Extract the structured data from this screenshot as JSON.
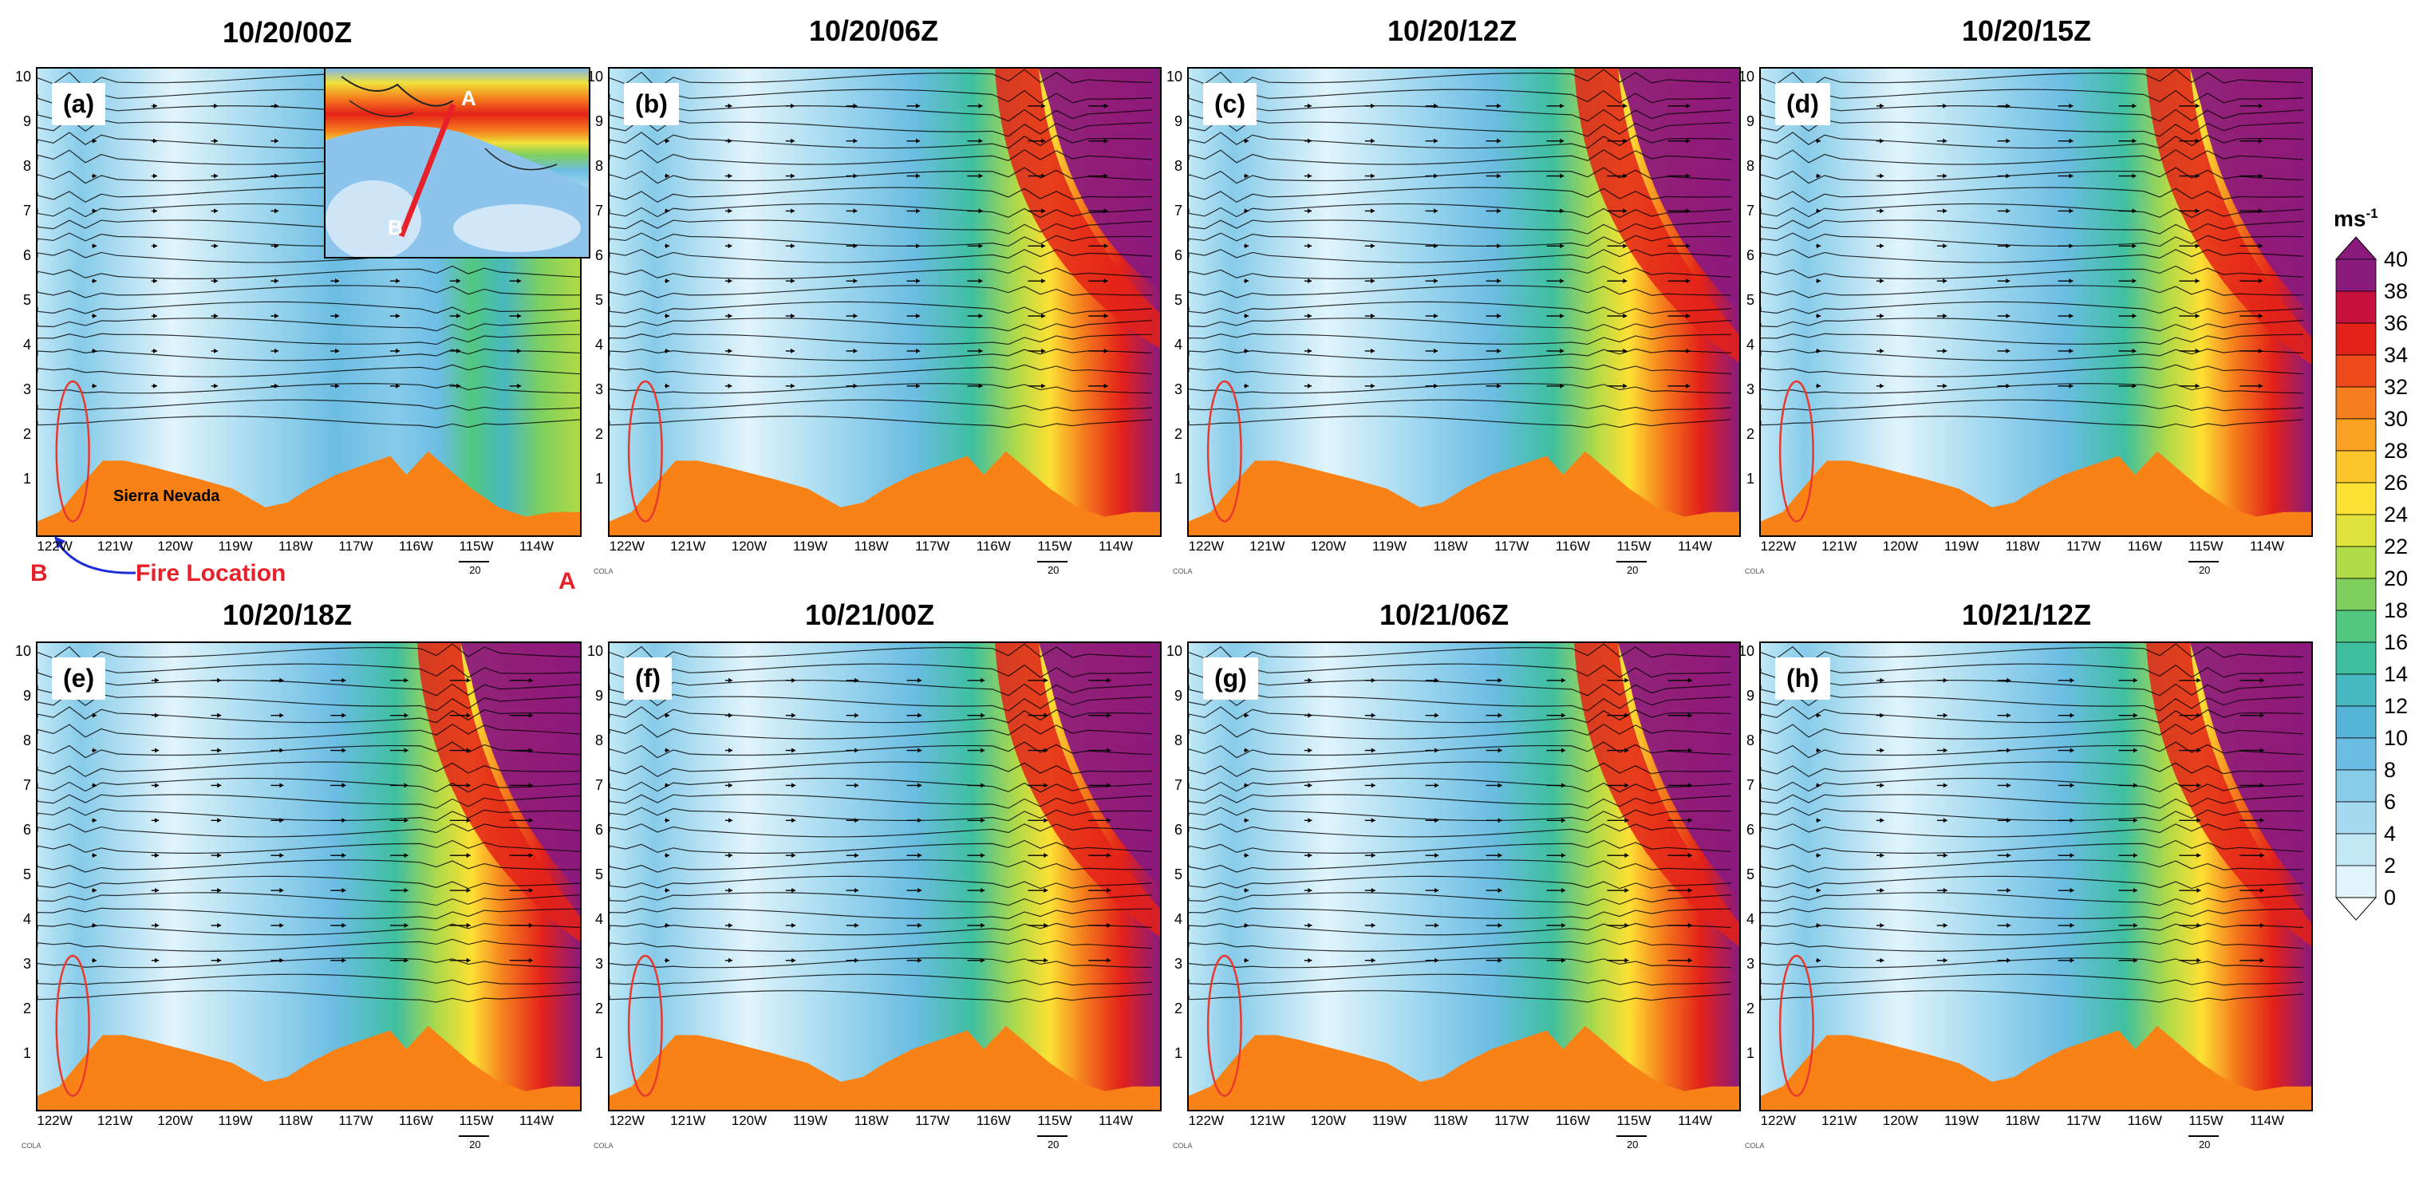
{
  "panels": [
    {
      "title": "10/20/00Z",
      "letter": "(a)"
    },
    {
      "title": "10/20/06Z",
      "letter": "(b)"
    },
    {
      "title": "10/20/12Z",
      "letter": "(c)"
    },
    {
      "title": "10/20/15Z",
      "letter": "(d)"
    },
    {
      "title": "10/20/18Z",
      "letter": "(e)"
    },
    {
      "title": "10/21/00Z",
      "letter": "(f)"
    },
    {
      "title": "10/21/06Z",
      "letter": "(g)"
    },
    {
      "title": "10/21/12Z",
      "letter": "(h)"
    }
  ],
  "y_ticks": [
    "10",
    "9",
    "8",
    "7",
    "6",
    "5",
    "4",
    "3",
    "2",
    "1"
  ],
  "x_ticks_a": [
    "122W",
    "121W",
    "120W",
    "119W",
    "118W",
    "117W",
    "116W",
    "115W",
    "114W"
  ],
  "x_ticks": [
    "122W",
    "121W",
    "120W",
    "119W",
    "118W",
    "117W",
    "116W",
    "115W",
    "114W"
  ],
  "vector_ref": "20",
  "cola_label": "COLA",
  "annotations": {
    "b_label": "B",
    "a_label": "A",
    "fire_location": "Fire Location",
    "sierra_nevada": "Sierra Nevada",
    "inset_a": "A",
    "inset_b": "B"
  },
  "colorbar": {
    "unit": "ms",
    "unit_exp": "-1",
    "ticks": [
      "40",
      "38",
      "36",
      "34",
      "32",
      "30",
      "28",
      "26",
      "24",
      "22",
      "20",
      "18",
      "16",
      "14",
      "12",
      "10",
      "8",
      "6",
      "4",
      "2",
      "0"
    ],
    "colors": [
      "#ffffff",
      "#e1f4fb",
      "#c2e8f6",
      "#a5daf0",
      "#87cbe9",
      "#6cbde3",
      "#55b3d8",
      "#48b8c0",
      "#3fbfa0",
      "#52c77f",
      "#7fd05e",
      "#b1da47",
      "#dfe23a",
      "#fde034",
      "#fdc62c",
      "#fba123",
      "#f57e1d",
      "#ee4a1b",
      "#e32219",
      "#c8103c",
      "#8b1a7d"
    ],
    "top_color": "#8b1a7d",
    "bottom_color": "#ffffff"
  },
  "colors": {
    "terrain": "#f98217",
    "contour": "#000000",
    "ellipse": "#e8392f",
    "section_line": "#e8202a",
    "fire_arrow": "#1c2dd6",
    "annot_red": "#e8202a"
  }
}
